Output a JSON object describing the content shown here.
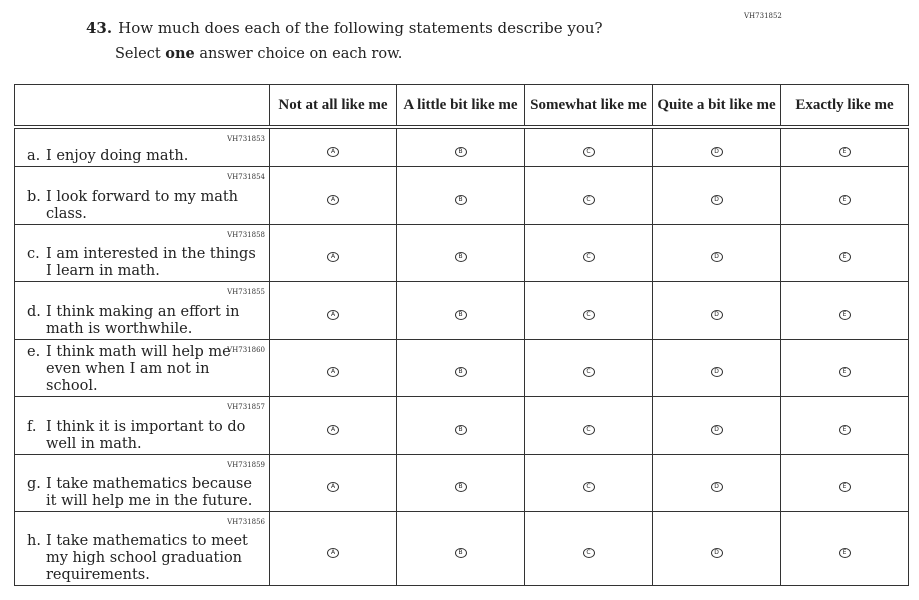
{
  "item_id": "VH731852",
  "question": {
    "number": "43.",
    "text": "How much does each of the following statements describe you?"
  },
  "instruction": {
    "before": "Select ",
    "bold": "one",
    "after": " answer choice on each row."
  },
  "columns": [
    "Not at all like me",
    "A little bit like me",
    "Somewhat like me",
    "Quite a bit like me",
    "Exactly like me"
  ],
  "options": [
    "A",
    "B",
    "C",
    "D",
    "E"
  ],
  "rows": [
    {
      "id": "VH731853",
      "label": "a.",
      "text": "I enjoy doing math."
    },
    {
      "id": "VH731854",
      "label": "b.",
      "text": "I look forward to my math class."
    },
    {
      "id": "VH731858",
      "label": "c.",
      "text": "I am interested in the things I learn in math."
    },
    {
      "id": "VH731855",
      "label": "d.",
      "text": "I think making an effort in math is worthwhile."
    },
    {
      "id": "VH731860",
      "label": "e.",
      "text": "I think math will help me even when I am not in school."
    },
    {
      "id": "VH731857",
      "label": "f.",
      "text": "I think it is important to do well in math."
    },
    {
      "id": "VH731859",
      "label": "g.",
      "text": "I take mathematics because it will help me in the future."
    },
    {
      "id": "VH731856",
      "label": "h.",
      "text": "I take mathematics to meet my high school graduation requirements."
    }
  ]
}
